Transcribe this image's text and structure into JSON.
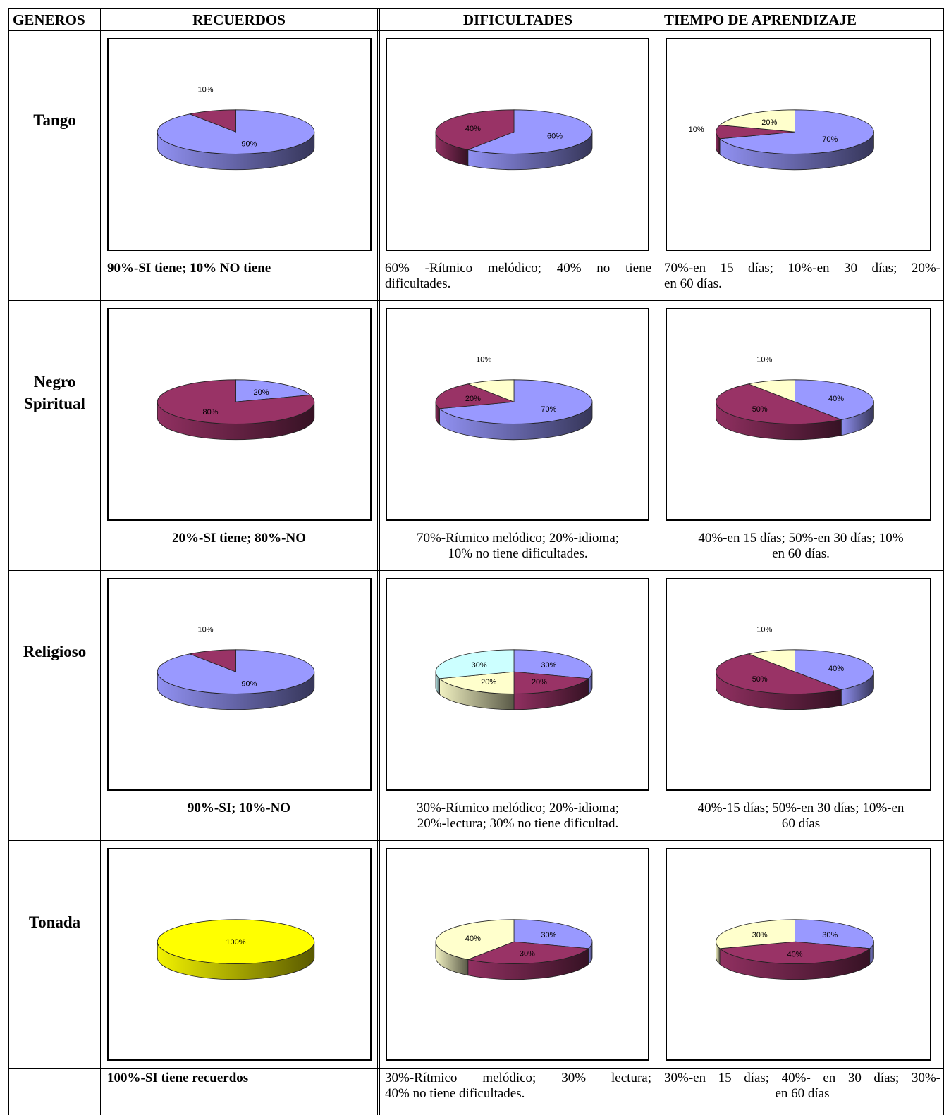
{
  "table": {
    "headers": {
      "generos": "GENEROS",
      "recuerdos": "RECUERDOS",
      "dificultades": "DIFICULTADES",
      "tiempo": "TIEMPO DE APRENDIZAJE"
    },
    "rows": [
      {
        "genre": [
          "Tango"
        ],
        "captions": {
          "recuerdos": "90%-SI tiene; 10% NO tiene",
          "dificultades": [
            "60% -Rítmico melódico; 40% no tiene",
            "dificultades."
          ],
          "tiempo": [
            "70%-en 15 días; 10%-en 30 días; 20%-",
            "en 60 días."
          ]
        }
      },
      {
        "genre": [
          "Negro",
          "Spiritual"
        ],
        "captions": {
          "recuerdos": "20%-SI tiene; 80%-NO",
          "dificultades": [
            "70%-Rítmico melódico; 20%-idioma;",
            "10% no tiene dificultades."
          ],
          "tiempo": [
            "40%-en 15 días; 50%-en 30 días; 10%",
            "en 60 días."
          ]
        }
      },
      {
        "genre": [
          "Religioso"
        ],
        "captions": {
          "recuerdos": "90%-SI; 10%-NO",
          "dificultades": [
            "30%-Rítmico melódico; 20%-idioma;",
            "20%-lectura; 30% no tiene dificultad."
          ],
          "tiempo": [
            "40%-15 días; 50%-en 30 días; 10%-en",
            "60 días"
          ]
        }
      },
      {
        "genre": [
          "Tonada"
        ],
        "captions": {
          "recuerdos": "100%-SI tiene recuerdos",
          "dificultades": [
            "30%-Rítmico melódico; 30% lectura;",
            "40% no tiene dificultades."
          ],
          "tiempo": [
            "30%-en 15 días; 40%- en 30 días; 30%-",
            "en 60 días"
          ]
        }
      }
    ]
  },
  "colors": {
    "periwinkle": "#9999ff",
    "plum": "#993366",
    "ivory": "#ffffcc",
    "light_cyan": "#ccffff",
    "yellow": "#ffff00"
  },
  "chart_data": [
    {
      "id": "tango-recuerdos",
      "type": "pie",
      "style": "3d",
      "values": [
        90,
        10
      ],
      "labels": [
        "90%",
        "10%"
      ],
      "colors": [
        "#9999ff",
        "#993366"
      ]
    },
    {
      "id": "tango-dificultades",
      "type": "pie",
      "style": "3d",
      "values": [
        60,
        40
      ],
      "labels": [
        "60%",
        "40%"
      ],
      "colors": [
        "#9999ff",
        "#993366"
      ]
    },
    {
      "id": "tango-tiempo",
      "type": "pie",
      "style": "3d",
      "values": [
        70,
        10,
        20
      ],
      "labels": [
        "70%",
        "10%",
        "20%"
      ],
      "colors": [
        "#9999ff",
        "#993366",
        "#ffffcc"
      ]
    },
    {
      "id": "negro-recuerdos",
      "type": "pie",
      "style": "3d",
      "values": [
        20,
        80
      ],
      "labels": [
        "20%",
        "80%"
      ],
      "colors": [
        "#9999ff",
        "#993366"
      ]
    },
    {
      "id": "negro-dificultades",
      "type": "pie",
      "style": "3d",
      "values": [
        70,
        20,
        10
      ],
      "labels": [
        "70%",
        "20%",
        "10%"
      ],
      "colors": [
        "#9999ff",
        "#993366",
        "#ffffcc"
      ]
    },
    {
      "id": "negro-tiempo",
      "type": "pie",
      "style": "3d",
      "values": [
        40,
        50,
        10
      ],
      "labels": [
        "40%",
        "50%",
        "10%"
      ],
      "colors": [
        "#9999ff",
        "#993366",
        "#ffffcc"
      ]
    },
    {
      "id": "religioso-recuerdos",
      "type": "pie",
      "style": "3d",
      "values": [
        90,
        10
      ],
      "labels": [
        "90%",
        "10%"
      ],
      "colors": [
        "#9999ff",
        "#993366"
      ]
    },
    {
      "id": "religioso-dificultades",
      "type": "pie",
      "style": "3d",
      "values": [
        30,
        20,
        20,
        30
      ],
      "labels": [
        "30%",
        "20%",
        "20%",
        "30%"
      ],
      "colors": [
        "#9999ff",
        "#993366",
        "#ffffcc",
        "#ccffff"
      ]
    },
    {
      "id": "religioso-tiempo",
      "type": "pie",
      "style": "3d",
      "values": [
        40,
        50,
        10
      ],
      "labels": [
        "40%",
        "50%",
        "10%"
      ],
      "colors": [
        "#9999ff",
        "#993366",
        "#ffffcc"
      ]
    },
    {
      "id": "tonada-recuerdos",
      "type": "pie",
      "style": "3d",
      "values": [
        100
      ],
      "labels": [
        "100%"
      ],
      "colors": [
        "#ffff00"
      ]
    },
    {
      "id": "tonada-dificultades",
      "type": "pie",
      "style": "3d",
      "values": [
        30,
        30,
        40
      ],
      "labels": [
        "30%",
        "30%",
        "40%"
      ],
      "colors": [
        "#9999ff",
        "#993366",
        "#ffffcc"
      ]
    },
    {
      "id": "tonada-tiempo",
      "type": "pie",
      "style": "3d",
      "values": [
        30,
        40,
        30
      ],
      "labels": [
        "30%",
        "40%",
        "30%"
      ],
      "colors": [
        "#9999ff",
        "#993366",
        "#ffffcc"
      ]
    }
  ]
}
